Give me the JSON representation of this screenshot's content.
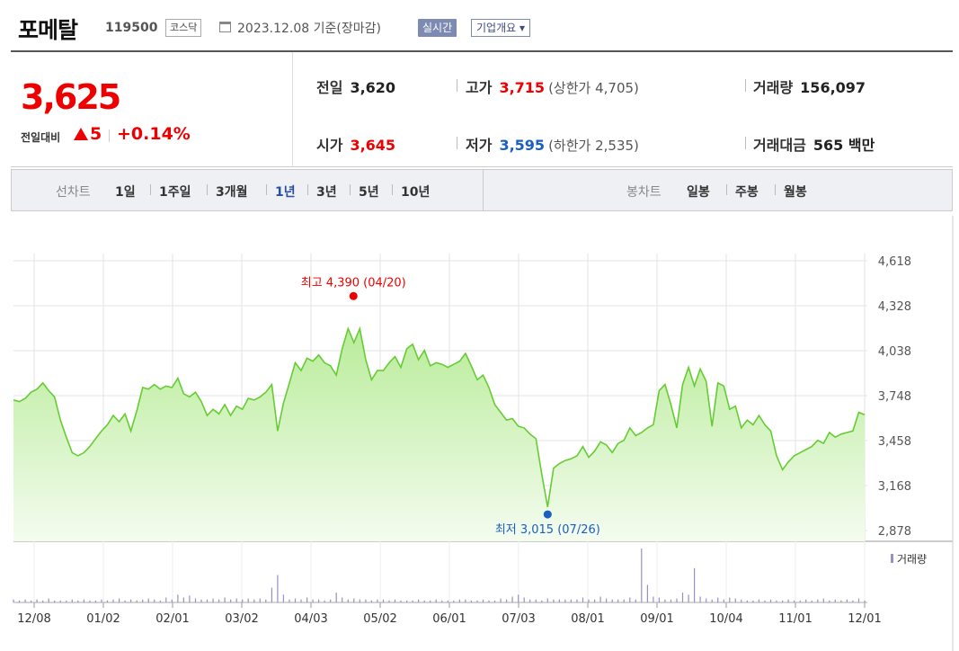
{
  "header": {
    "name": "포메탈",
    "code": "119500",
    "market": "코스닥",
    "date": "2023.12.08 기준(장마감)",
    "realtime": "실시간",
    "company": "기업개요 ▾"
  },
  "quote": {
    "price": "3,625",
    "change_label": "전일대비",
    "change_value": "5",
    "change_pct": "+0.14%",
    "colors": {
      "up": "#e00000",
      "down": "#1a5ec2"
    },
    "prev": {
      "label": "전일",
      "value": "3,620"
    },
    "high": {
      "label": "고가",
      "value": "3,715",
      "paren": "(상한가 4,705)"
    },
    "volume": {
      "label": "거래량",
      "value": "156,097"
    },
    "open": {
      "label": "시가",
      "value": "3,645"
    },
    "low": {
      "label": "저가",
      "value": "3,595",
      "paren": "(하한가 2,535)"
    },
    "amount": {
      "label": "거래대금",
      "value": "565 백만"
    }
  },
  "periods": {
    "label": "선차트",
    "items": [
      "1일",
      "1주일",
      "3개월",
      "1년",
      "3년",
      "5년",
      "10년"
    ],
    "active": "1년"
  },
  "candle": {
    "label": "봉차트",
    "items": [
      "일봉",
      "주봉",
      "월봉"
    ]
  },
  "chart_data": {
    "type": "line",
    "ylim": [
      2878,
      4618
    ],
    "yticks": [
      "4,618",
      "4,328",
      "4,038",
      "3,748",
      "3,458",
      "3,168",
      "2,878"
    ],
    "xticks": [
      "12/08",
      "01/02",
      "02/01",
      "03/02",
      "04/03",
      "05/02",
      "06/01",
      "07/03",
      "08/01",
      "09/01",
      "10/04",
      "11/01",
      "12/01"
    ],
    "max_label": "최고 4,390 (04/20)",
    "min_label": "최저 3,015 (07/26)",
    "volume_label": "거래량",
    "line_color": "#66cc33",
    "prices": [
      3720,
      3710,
      3730,
      3770,
      3790,
      3830,
      3780,
      3740,
      3590,
      3480,
      3380,
      3360,
      3380,
      3420,
      3470,
      3520,
      3560,
      3620,
      3580,
      3630,
      3520,
      3650,
      3800,
      3790,
      3820,
      3790,
      3810,
      3800,
      3860,
      3760,
      3740,
      3770,
      3710,
      3620,
      3660,
      3630,
      3690,
      3620,
      3680,
      3660,
      3730,
      3720,
      3740,
      3770,
      3820,
      3520,
      3700,
      3830,
      3960,
      3910,
      3990,
      3970,
      4010,
      3960,
      3940,
      3880,
      4050,
      4180,
      4090,
      4180,
      3980,
      3850,
      3910,
      3910,
      3960,
      4000,
      3930,
      4050,
      4080,
      3980,
      4040,
      3940,
      3960,
      3950,
      3930,
      3950,
      3970,
      4020,
      3940,
      3850,
      3880,
      3800,
      3690,
      3640,
      3590,
      3600,
      3550,
      3540,
      3500,
      3470,
      3240,
      3030,
      3280,
      3310,
      3330,
      3340,
      3360,
      3420,
      3350,
      3390,
      3450,
      3430,
      3380,
      3440,
      3460,
      3540,
      3490,
      3510,
      3540,
      3560,
      3780,
      3820,
      3690,
      3540,
      3820,
      3930,
      3810,
      3920,
      3840,
      3550,
      3830,
      3810,
      3660,
      3680,
      3540,
      3590,
      3560,
      3620,
      3560,
      3520,
      3360,
      3270,
      3320,
      3360,
      3380,
      3400,
      3420,
      3460,
      3440,
      3510,
      3480,
      3500,
      3510,
      3520,
      3640,
      3625
    ],
    "volumes": [
      3,
      2,
      3,
      2,
      3,
      2,
      4,
      2,
      2,
      2,
      3,
      2,
      3,
      2,
      2,
      3,
      2,
      3,
      4,
      2,
      3,
      2,
      3,
      4,
      3,
      2,
      5,
      3,
      8,
      5,
      7,
      4,
      3,
      3,
      4,
      3,
      5,
      3,
      4,
      3,
      4,
      3,
      4,
      3,
      15,
      28,
      8,
      3,
      4,
      3,
      5,
      3,
      3,
      2,
      3,
      10,
      5,
      3,
      4,
      3,
      3,
      2,
      3,
      3,
      2,
      3,
      2,
      2,
      2,
      3,
      2,
      2,
      3,
      2,
      2,
      2,
      3,
      3,
      2,
      2,
      3,
      2,
      2,
      4,
      3,
      6,
      8,
      5,
      3,
      3,
      2,
      4,
      3,
      3,
      3,
      3,
      3,
      5,
      3,
      3,
      6,
      4,
      3,
      3,
      3,
      5,
      3,
      55,
      18,
      6,
      5,
      3,
      3,
      4,
      10,
      8,
      35,
      6,
      4,
      3,
      5,
      3,
      5,
      4,
      3,
      2,
      2,
      3,
      2,
      3,
      2,
      2,
      3,
      2,
      2,
      3,
      2,
      3,
      4,
      2,
      3,
      2,
      3,
      2,
      4,
      2
    ]
  }
}
